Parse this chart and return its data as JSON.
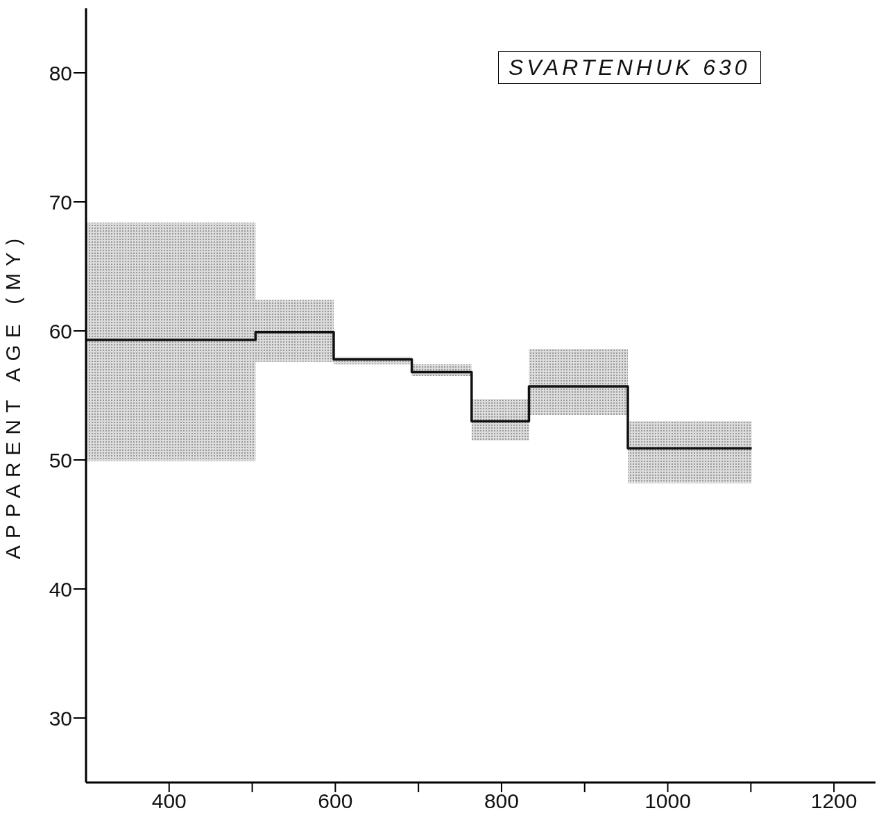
{
  "chart_data": {
    "type": "step",
    "title": "SVARTENHUK 630",
    "ylabel": "APPARENT AGE (MY)",
    "xlim": [
      300,
      1250
    ],
    "xticks": [
      400,
      {
        "value": 500,
        "label": null
      },
      600,
      {
        "value": 700,
        "label": null
      },
      800,
      {
        "value": 900,
        "label": null
      },
      1000,
      {
        "value": 1100,
        "label": null
      },
      1200
    ],
    "ylim": [
      25,
      85
    ],
    "yticks": [
      30,
      40,
      50,
      60,
      70,
      80
    ],
    "series": [
      {
        "color": "#111111",
        "x": [
          300,
          504,
          598,
          692,
          764,
          833,
          952,
          1101
        ],
        "values": [
          59.3,
          59.9,
          57.8,
          56.8,
          53.0,
          55.7,
          50.9,
          50.9
        ],
        "lower": [
          49.9,
          57.6,
          57.4,
          56.5,
          51.5,
          53.5,
          48.2,
          48.2
        ],
        "upper": [
          68.4,
          62.4,
          58.0,
          57.4,
          54.7,
          58.6,
          53.0,
          53.0
        ]
      }
    ]
  }
}
